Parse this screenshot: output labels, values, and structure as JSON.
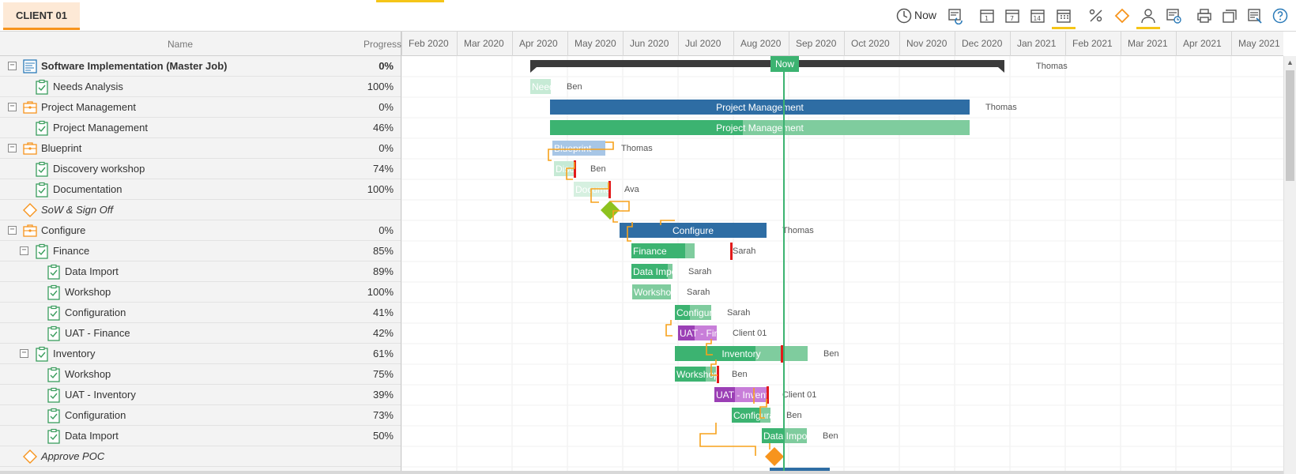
{
  "tab": {
    "label": "CLIENT 01"
  },
  "toolbar": {
    "now_label": "Now"
  },
  "grid_header": {
    "name": "Name",
    "progress": "Progress"
  },
  "timeline": {
    "months": [
      "Feb 2020",
      "Mar 2020",
      "Apr 2020",
      "May 2020",
      "Jun 2020",
      "Jul 2020",
      "Aug 2020",
      "Sep 2020",
      "Oct 2020",
      "Nov 2020",
      "Dec 2020",
      "Jan 2021",
      "Feb 2021",
      "Mar 2021",
      "Apr 2021",
      "May 2021"
    ],
    "now_label": "Now"
  },
  "rows": [
    {
      "name": "Software Implementation (Master Job)",
      "progress": "0%"
    },
    {
      "name": "Needs Analysis",
      "progress": "100%"
    },
    {
      "name": "Project Management",
      "progress": "0%"
    },
    {
      "name": "Project Management",
      "progress": "46%"
    },
    {
      "name": "Blueprint",
      "progress": "0%"
    },
    {
      "name": "Discovery workshop",
      "progress": "74%"
    },
    {
      "name": "Documentation",
      "progress": "100%"
    },
    {
      "name": "SoW & Sign Off",
      "progress": ""
    },
    {
      "name": "Configure",
      "progress": "0%"
    },
    {
      "name": "Finance",
      "progress": "85%"
    },
    {
      "name": "Data Import",
      "progress": "89%"
    },
    {
      "name": "Workshop",
      "progress": "100%"
    },
    {
      "name": "Configuration",
      "progress": "41%"
    },
    {
      "name": "UAT - Finance",
      "progress": "42%"
    },
    {
      "name": "Inventory",
      "progress": "61%"
    },
    {
      "name": "Workshop",
      "progress": "75%"
    },
    {
      "name": "UAT - Inventory",
      "progress": "39%"
    },
    {
      "name": "Configuration",
      "progress": "73%"
    },
    {
      "name": "Data Import",
      "progress": "50%"
    },
    {
      "name": "Approve POC",
      "progress": ""
    }
  ],
  "bars": [
    {
      "label": "",
      "resource": "Thomas"
    },
    {
      "label": "Needs Analysis",
      "resource": "Ben"
    },
    {
      "label": "Project Management",
      "resource": "Thomas"
    },
    {
      "label": "Project Management",
      "resource": ""
    },
    {
      "label": "Blueprint",
      "resource": "Thomas"
    },
    {
      "label": "Discovery workshop",
      "resource": "Ben"
    },
    {
      "label": "Documentation",
      "resource": "Ava"
    },
    {
      "label": "",
      "resource": ""
    },
    {
      "label": "Configure",
      "resource": "Thomas"
    },
    {
      "label": "Finance",
      "resource": "Sarah"
    },
    {
      "label": "Data Import",
      "resource": "Sarah"
    },
    {
      "label": "Workshop",
      "resource": "Sarah"
    },
    {
      "label": "Configuration",
      "resource": "Sarah"
    },
    {
      "label": "UAT - Finance",
      "resource": "Client 01"
    },
    {
      "label": "Inventory",
      "resource": "Ben"
    },
    {
      "label": "Workshop",
      "resource": "Ben"
    },
    {
      "label": "UAT - Inventory",
      "resource": "Client 01"
    },
    {
      "label": "Configuration",
      "resource": "Ben"
    },
    {
      "label": "Data Import",
      "resource": "Ben"
    },
    {
      "label": "",
      "resource": ""
    }
  ],
  "icons": {
    "toolbar": [
      "clock-icon",
      "refresh-schedule-icon",
      "calendar-day-icon",
      "calendar-week-icon",
      "calendar-2weeks-icon",
      "calendar-month-icon",
      "percent-icon",
      "milestone-icon",
      "resource-icon",
      "baseline-icon",
      "print-icon",
      "copy-icon",
      "export-icon",
      "help-icon"
    ]
  },
  "colors": {
    "accent": "#f7941d",
    "summary_blue": "#2e6da4",
    "task_green": "#3cb371",
    "task_light_green": "#7fcc9e",
    "uat_purple": "#9b3fb5",
    "milestone_green": "#8dc21f",
    "milestone_orange": "#f7941d",
    "now_line": "#3cb371",
    "link": "#f7a21b",
    "deadline": "#e21b1b"
  }
}
